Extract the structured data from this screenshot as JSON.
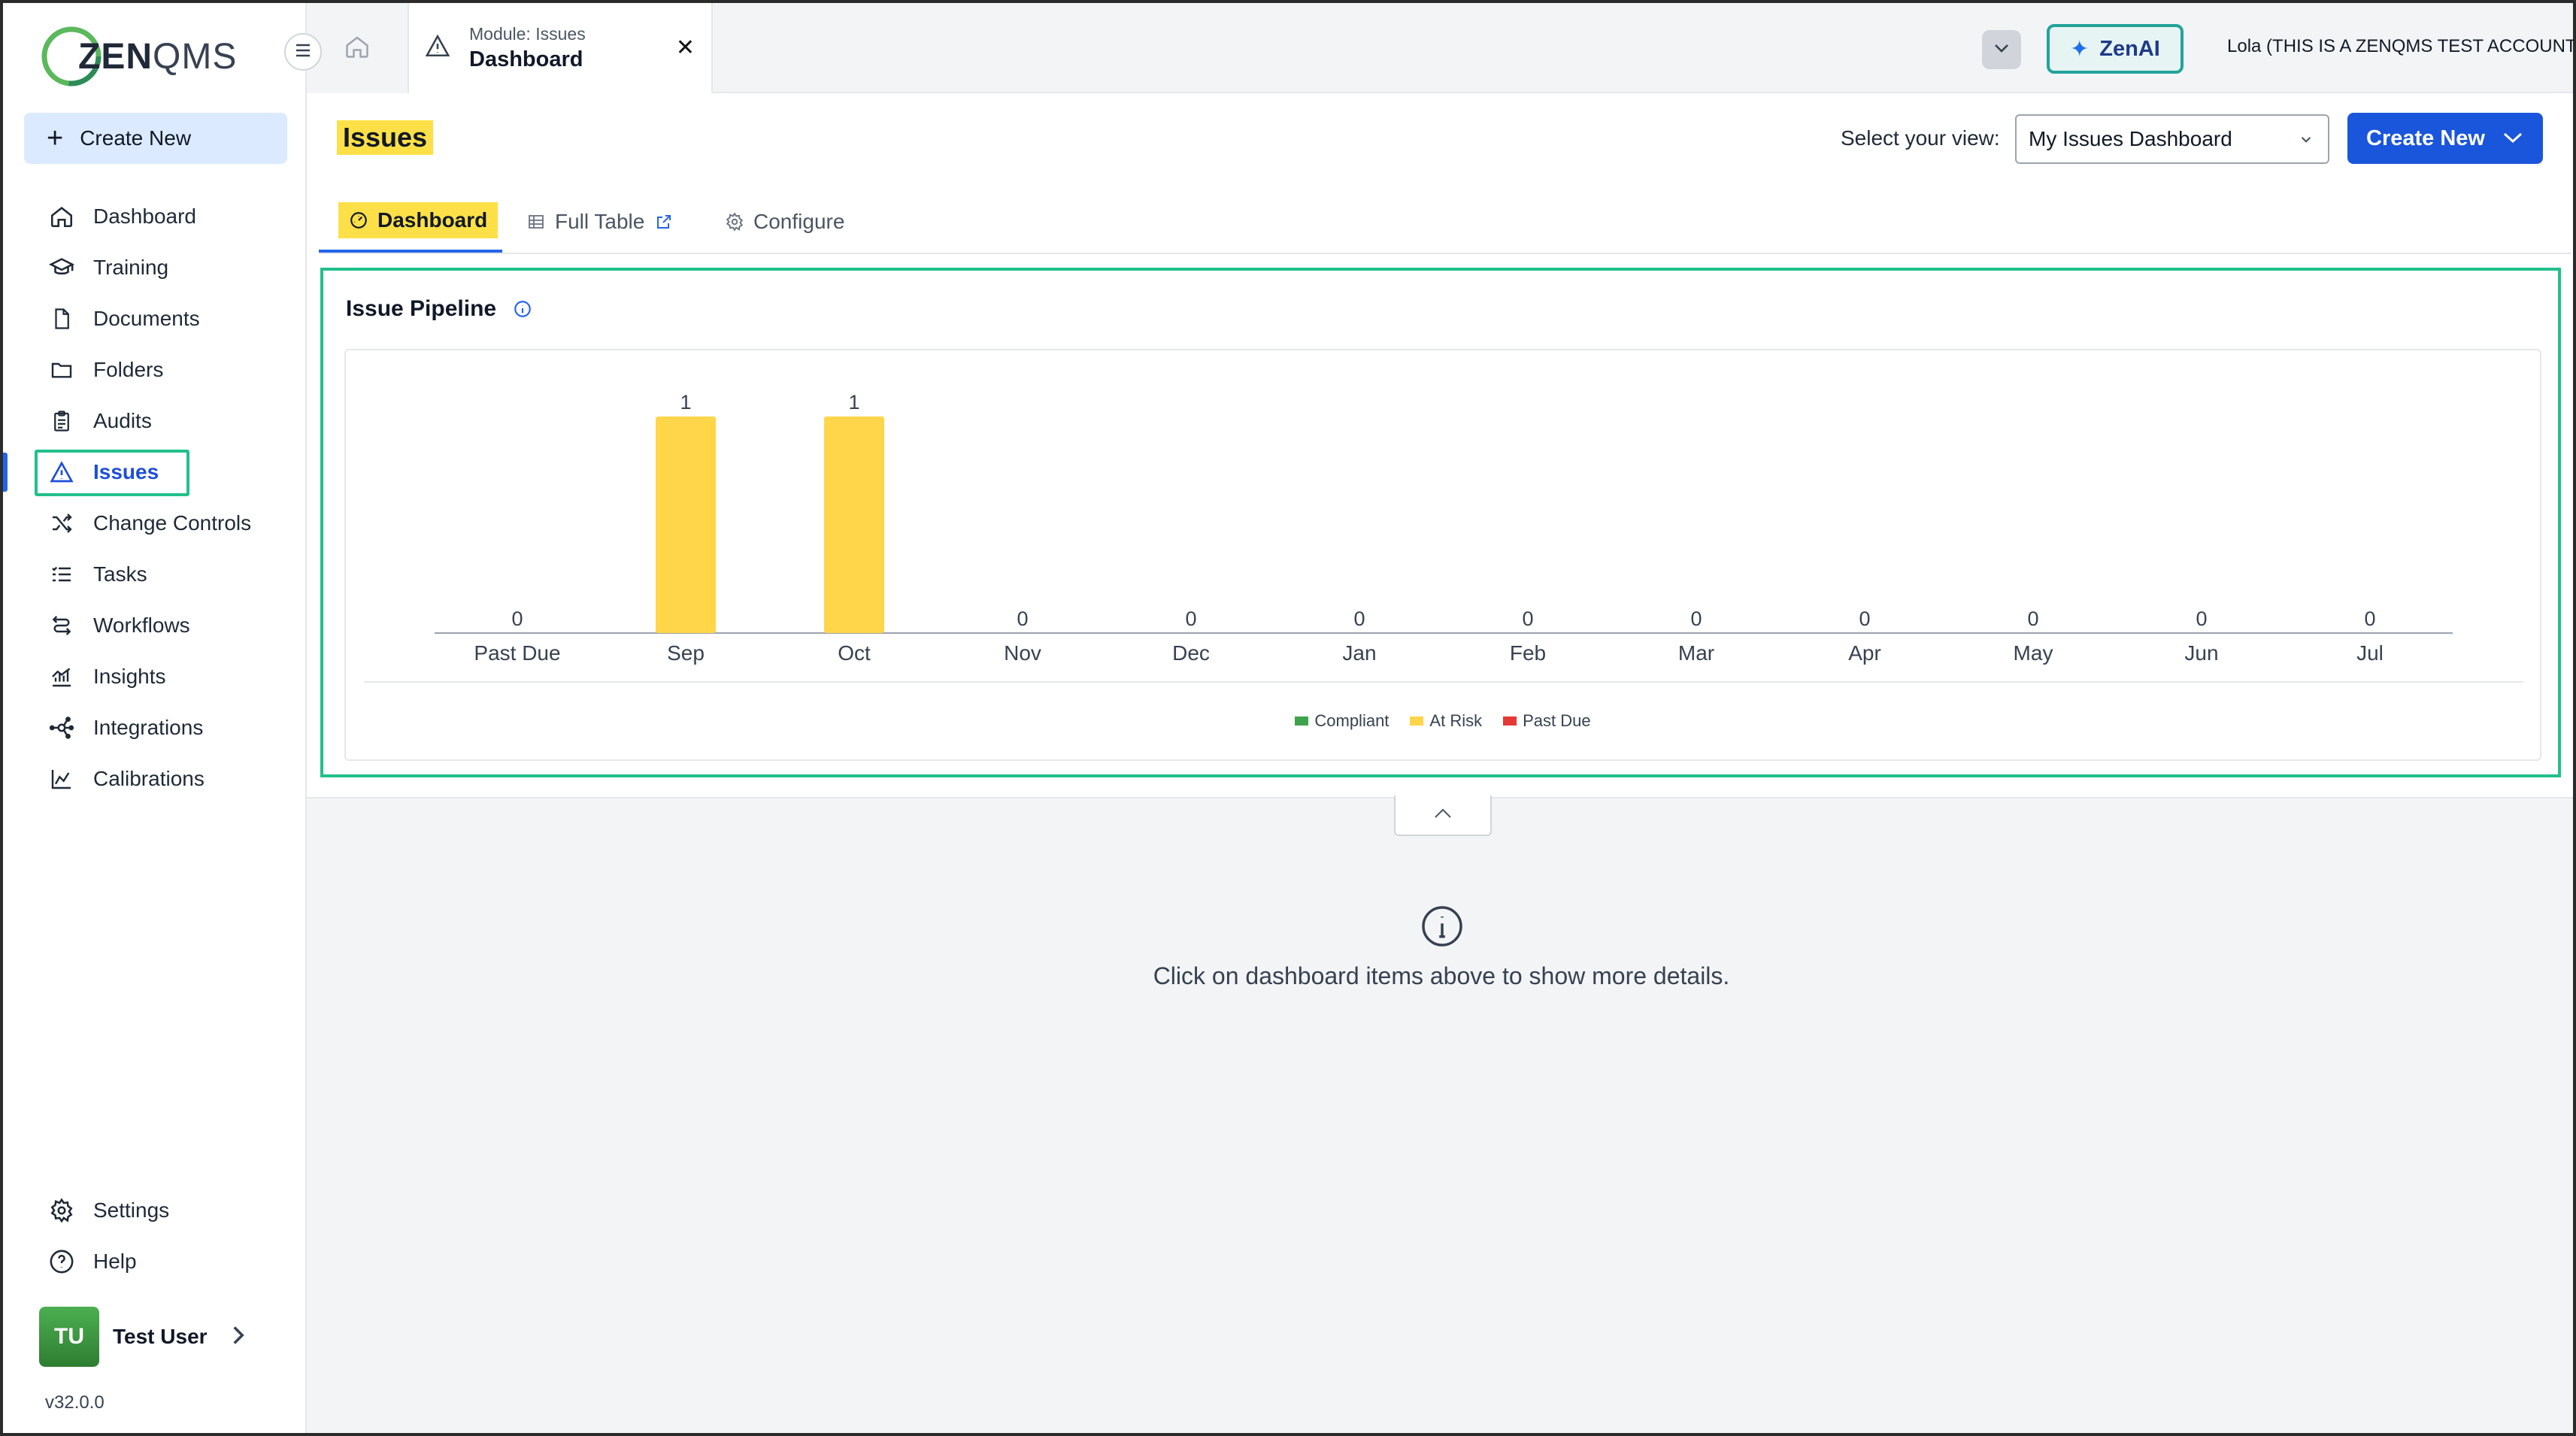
{
  "brand": {
    "logo_prefix": "ZEN",
    "logo_suffix": "QMS"
  },
  "sidebar": {
    "create_new": "Create New",
    "items": [
      {
        "label": "Dashboard",
        "icon": "home-icon"
      },
      {
        "label": "Training",
        "icon": "graduation-cap-icon"
      },
      {
        "label": "Documents",
        "icon": "document-icon"
      },
      {
        "label": "Folders",
        "icon": "folder-icon"
      },
      {
        "label": "Audits",
        "icon": "clipboard-icon"
      },
      {
        "label": "Issues",
        "icon": "warning-triangle-icon",
        "active": true
      },
      {
        "label": "Change Controls",
        "icon": "shuffle-icon"
      },
      {
        "label": "Tasks",
        "icon": "checklist-icon"
      },
      {
        "label": "Workflows",
        "icon": "workflow-icon"
      },
      {
        "label": "Insights",
        "icon": "bar-chart-icon"
      },
      {
        "label": "Integrations",
        "icon": "network-icon"
      },
      {
        "label": "Calibrations",
        "icon": "line-chart-icon"
      }
    ],
    "bottom_items": [
      {
        "label": "Settings",
        "icon": "gear-icon"
      },
      {
        "label": "Help",
        "icon": "question-icon"
      }
    ],
    "user": {
      "initials": "TU",
      "name": "Test User"
    },
    "version": "v32.0.0"
  },
  "topbar": {
    "tab_module": "Module: Issues",
    "tab_title": "Dashboard",
    "zenai": "ZenAI",
    "account": "Lola (THIS IS A ZENQMS TEST ACCOUNT)"
  },
  "main": {
    "title": "Issues",
    "view_label": "Select your view:",
    "view_value": "My Issues Dashboard",
    "create_new": "Create New",
    "tabs": [
      {
        "label": "Dashboard"
      },
      {
        "label": "Full Table"
      },
      {
        "label": "Configure"
      }
    ],
    "pipeline_title": "Issue Pipeline",
    "details_text": "Click on dashboard items above to show more details."
  },
  "colors": {
    "compliant": "#3fa34d",
    "at_risk": "#ffd54a",
    "past_due": "#e53935",
    "accent": "#1a56db",
    "highlight_box": "#22c08a"
  },
  "chart_data": {
    "type": "bar",
    "categories": [
      "Past Due",
      "Sep",
      "Oct",
      "Nov",
      "Dec",
      "Jan",
      "Feb",
      "Mar",
      "Apr",
      "May",
      "Jun",
      "Jul"
    ],
    "series": [
      {
        "name": "Compliant",
        "values": [
          0,
          0,
          0,
          0,
          0,
          0,
          0,
          0,
          0,
          0,
          0,
          0
        ]
      },
      {
        "name": "At Risk",
        "values": [
          0,
          1,
          1,
          0,
          0,
          0,
          0,
          0,
          0,
          0,
          0,
          0
        ]
      },
      {
        "name": "Past Due",
        "values": [
          0,
          0,
          0,
          0,
          0,
          0,
          0,
          0,
          0,
          0,
          0,
          0
        ]
      }
    ],
    "totals": [
      0,
      1,
      1,
      0,
      0,
      0,
      0,
      0,
      0,
      0,
      0,
      0
    ],
    "title": "Issue Pipeline",
    "xlabel": "",
    "ylabel": "",
    "ylim": [
      0,
      1
    ],
    "stacked": true,
    "grid": false,
    "legend": "bottom"
  }
}
